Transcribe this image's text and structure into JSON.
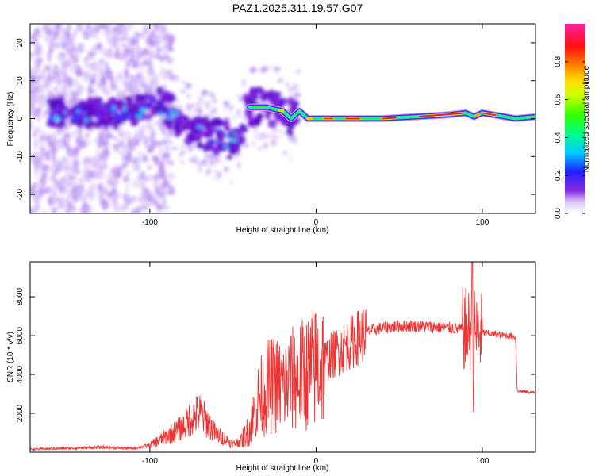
{
  "title": "PAZ1.2025.311.19.57.G07",
  "colors": {
    "snr_line": "#ee3333",
    "spectrogram_main": "#6a14d8",
    "spectrogram_peak": "#e8202a"
  },
  "chart_data": [
    {
      "type": "heatmap",
      "name": "spectrogram",
      "xlabel": "Height of straight line (km)",
      "ylabel": "Frequency (Hz)",
      "xlim": [
        -172,
        132
      ],
      "ylim": [
        -25,
        25
      ],
      "x_ticks": [
        -100,
        0,
        100
      ],
      "x_tick_labels": [
        "-100",
        "0",
        "100"
      ],
      "y_ticks": [
        -20,
        -10,
        0,
        10,
        20
      ],
      "y_tick_labels": [
        "-20",
        "-10",
        "0",
        "10",
        "20"
      ],
      "colorbar": {
        "label": "Normalized spectral amplitude",
        "range": [
          0.0,
          1.0
        ],
        "ticks": [
          0.0,
          0.2,
          0.4,
          0.6,
          0.8
        ],
        "tick_labels": [
          "0.0",
          "0.2",
          "0.4",
          "0.6",
          "0.8"
        ],
        "colormap": "rainbow (white-violet-blue-cyan-green-yellow-red-magenta)"
      },
      "ridge": {
        "x": [
          -155,
          -140,
          -120,
          -100,
          -90,
          -80,
          -70,
          -60,
          -50,
          -40,
          -30,
          -20,
          -15,
          -10,
          -5,
          0,
          20,
          40,
          60,
          80,
          90,
          95,
          100,
          120,
          132
        ],
        "frequency": [
          1.5,
          1.5,
          1.5,
          3,
          3,
          -1,
          -3,
          -5,
          -6,
          3,
          3,
          2,
          0,
          2,
          0,
          0,
          0,
          0,
          0.5,
          1,
          1.5,
          0.5,
          1.5,
          0,
          0.5
        ],
        "amplitude": [
          0.3,
          0.3,
          0.3,
          0.35,
          0.35,
          0.3,
          0.3,
          0.3,
          0.3,
          0.4,
          0.45,
          0.5,
          0.55,
          0.5,
          0.6,
          0.7,
          0.8,
          0.8,
          0.85,
          0.9,
          0.8,
          0.75,
          0.8,
          0.75,
          0.7
        ]
      }
    },
    {
      "type": "line",
      "name": "snr",
      "xlabel": "Height of straight line (km)",
      "ylabel": "SNR (10 * v/v)",
      "xlim": [
        -172,
        132
      ],
      "ylim": [
        0,
        9800
      ],
      "x_ticks": [
        -100,
        0,
        100
      ],
      "x_tick_labels": [
        "-100",
        "0",
        "100"
      ],
      "y_ticks": [
        2000,
        4000,
        6000,
        8000
      ],
      "y_tick_labels": [
        "2000",
        "4000",
        "6000",
        "8000"
      ],
      "series": [
        {
          "name": "SNR",
          "x": [
            -172,
            -150,
            -130,
            -110,
            -100,
            -90,
            -80,
            -75,
            -70,
            -65,
            -60,
            -55,
            -50,
            -45,
            -40,
            -35,
            -30,
            -25,
            -20,
            -15,
            -10,
            -5,
            0,
            5,
            10,
            15,
            20,
            30,
            40,
            50,
            60,
            70,
            80,
            85,
            90,
            93,
            95,
            97,
            100,
            110,
            120,
            121,
            122,
            132
          ],
          "y": [
            150,
            200,
            250,
            200,
            350,
            800,
            1300,
            1800,
            2000,
            1500,
            900,
            700,
            400,
            600,
            1200,
            2600,
            3300,
            3500,
            3300,
            3700,
            3900,
            4100,
            4400,
            4700,
            5000,
            5300,
            5600,
            6200,
            6400,
            6500,
            6500,
            6450,
            6400,
            6350,
            6300,
            6200,
            6300,
            6100,
            6150,
            6050,
            5950,
            3200,
            3150,
            3050
          ]
        }
      ]
    }
  ]
}
